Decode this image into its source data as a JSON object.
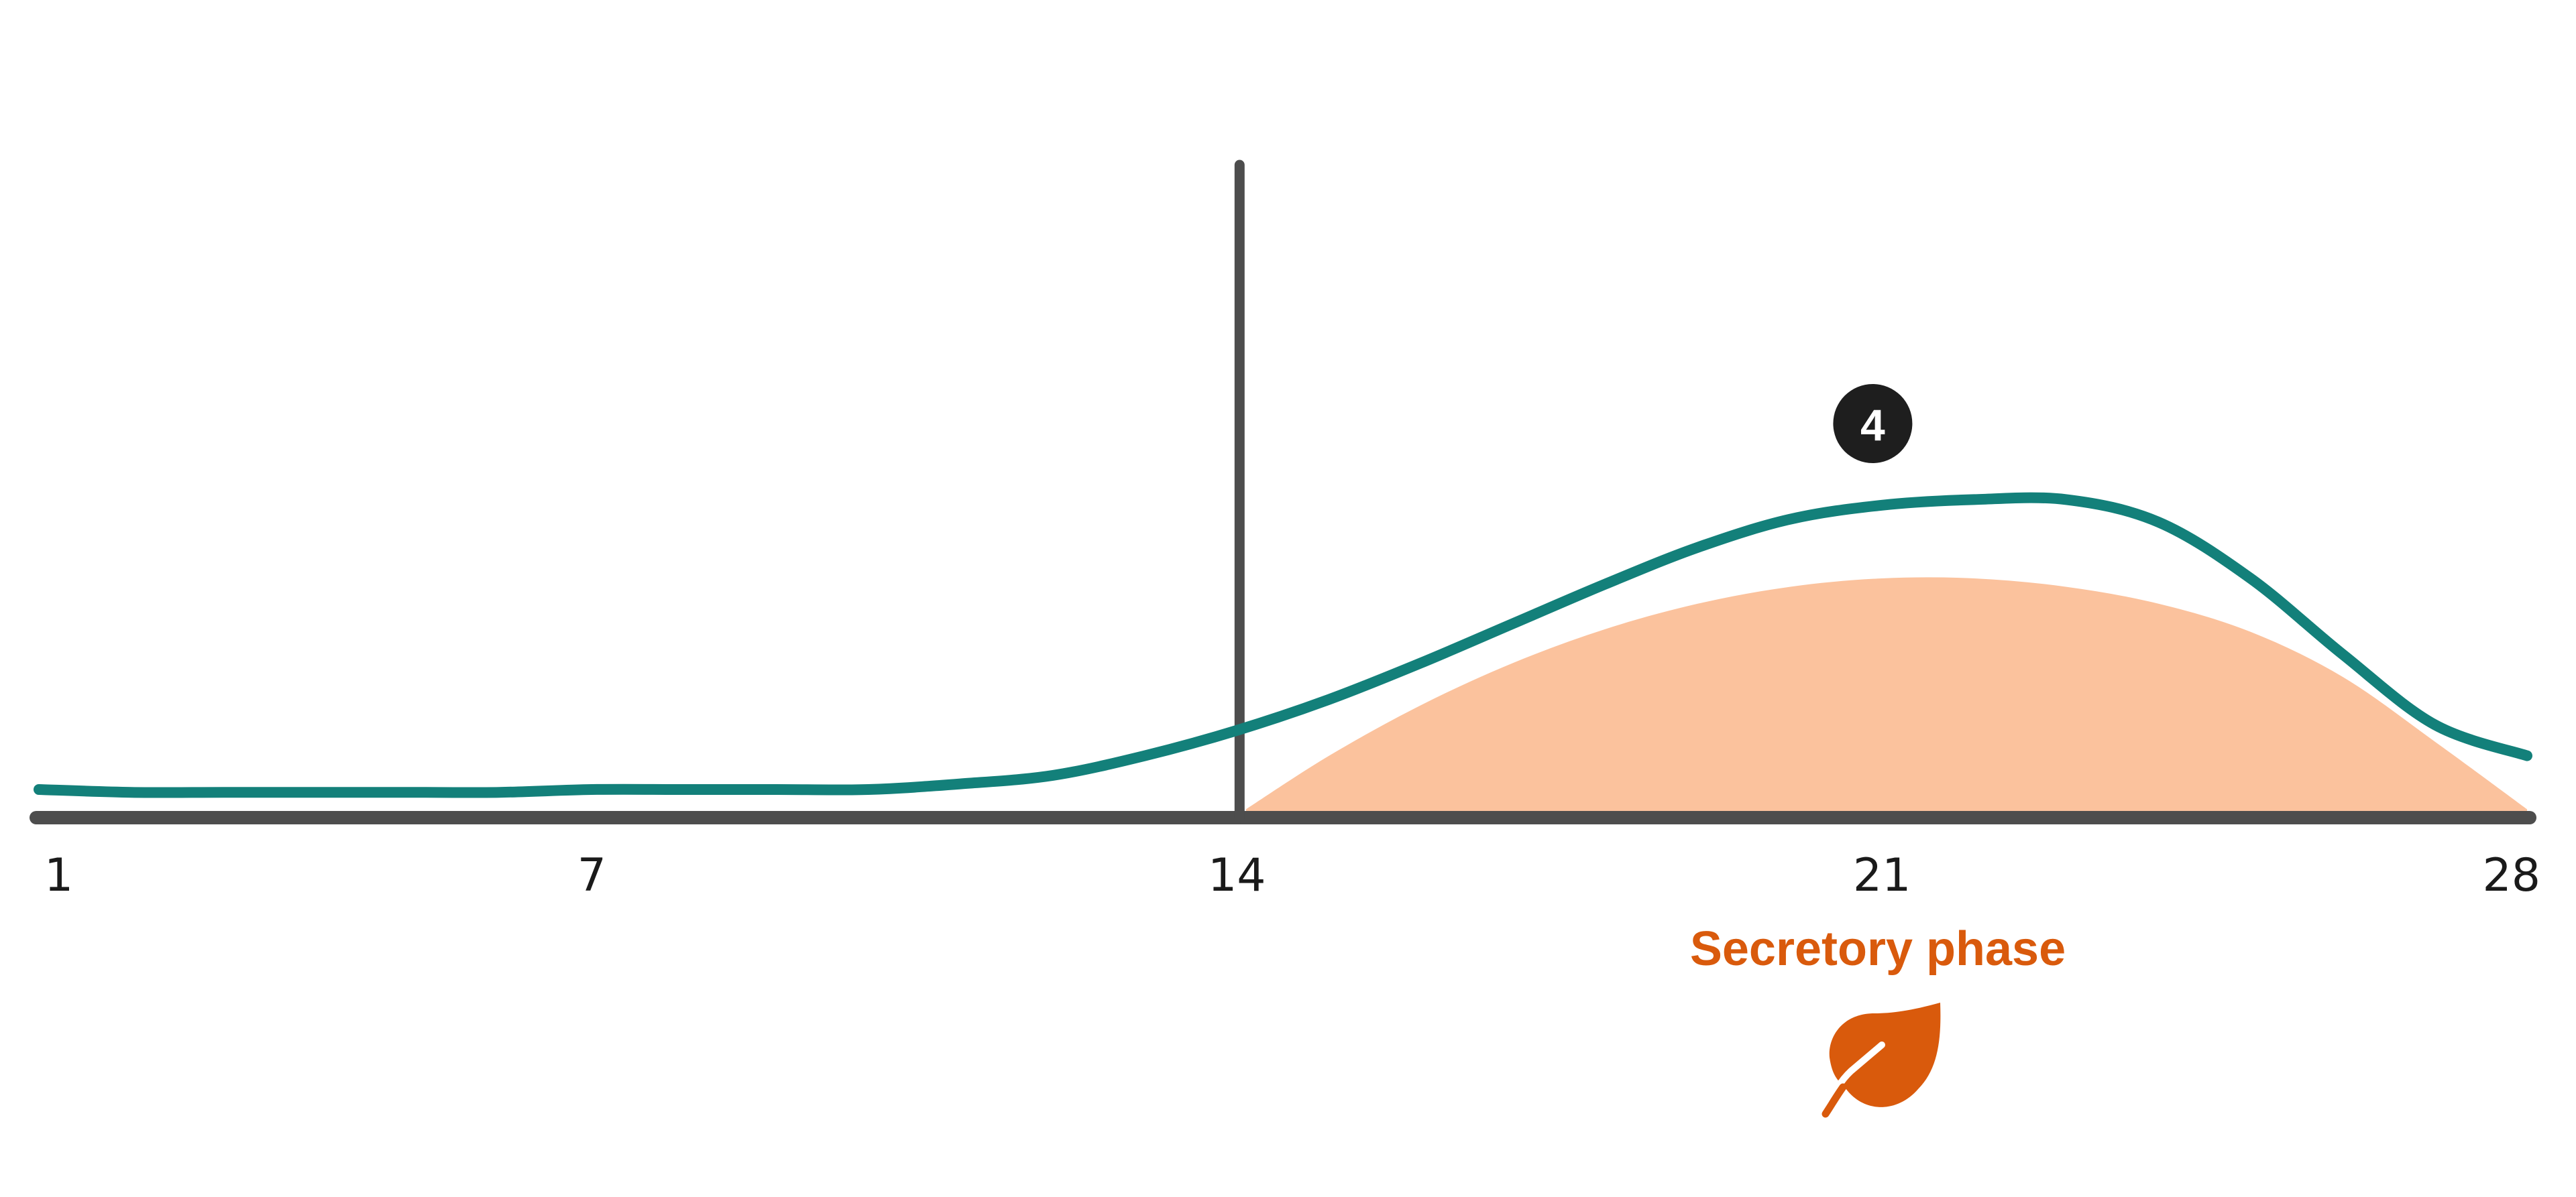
{
  "chart_data": {
    "type": "line",
    "x_ticks": [
      "1",
      "7",
      "14",
      "21",
      "28"
    ],
    "xlim": [
      1,
      28
    ],
    "grid": false,
    "legend": "none",
    "series": [
      {
        "x": [
          1,
          2,
          3,
          4,
          5,
          6,
          7,
          8,
          9,
          10,
          11,
          12,
          13,
          14,
          15,
          16,
          17,
          18,
          19,
          20,
          21,
          22,
          23,
          24,
          25,
          26,
          27,
          28
        ],
        "y": [
          0.1,
          0.09,
          0.09,
          0.09,
          0.09,
          0.09,
          0.1,
          0.1,
          0.1,
          0.1,
          0.12,
          0.15,
          0.22,
          0.31,
          0.42,
          0.55,
          0.69,
          0.83,
          0.96,
          1.06,
          1.11,
          1.13,
          1.13,
          1.05,
          0.85,
          0.58,
          0.33,
          0.22
        ],
        "color": "#13807a"
      }
    ],
    "ovulation_day": 14,
    "phase_area": {
      "label": "Secretory phase",
      "x": [
        14.1,
        15,
        16,
        17,
        18,
        19,
        20,
        21,
        22,
        23,
        24,
        25,
        26,
        27,
        28
      ],
      "y": [
        0.03,
        0.22,
        0.4,
        0.55,
        0.67,
        0.76,
        0.82,
        0.85,
        0.85,
        0.82,
        0.76,
        0.66,
        0.5,
        0.27,
        0.03
      ],
      "color": "#fbc29d",
      "label_color": "#d95a0c",
      "icon": "leaf-icon"
    },
    "annotations": [
      {
        "label": "4",
        "x": 20.9,
        "y": 1.4
      }
    ]
  }
}
